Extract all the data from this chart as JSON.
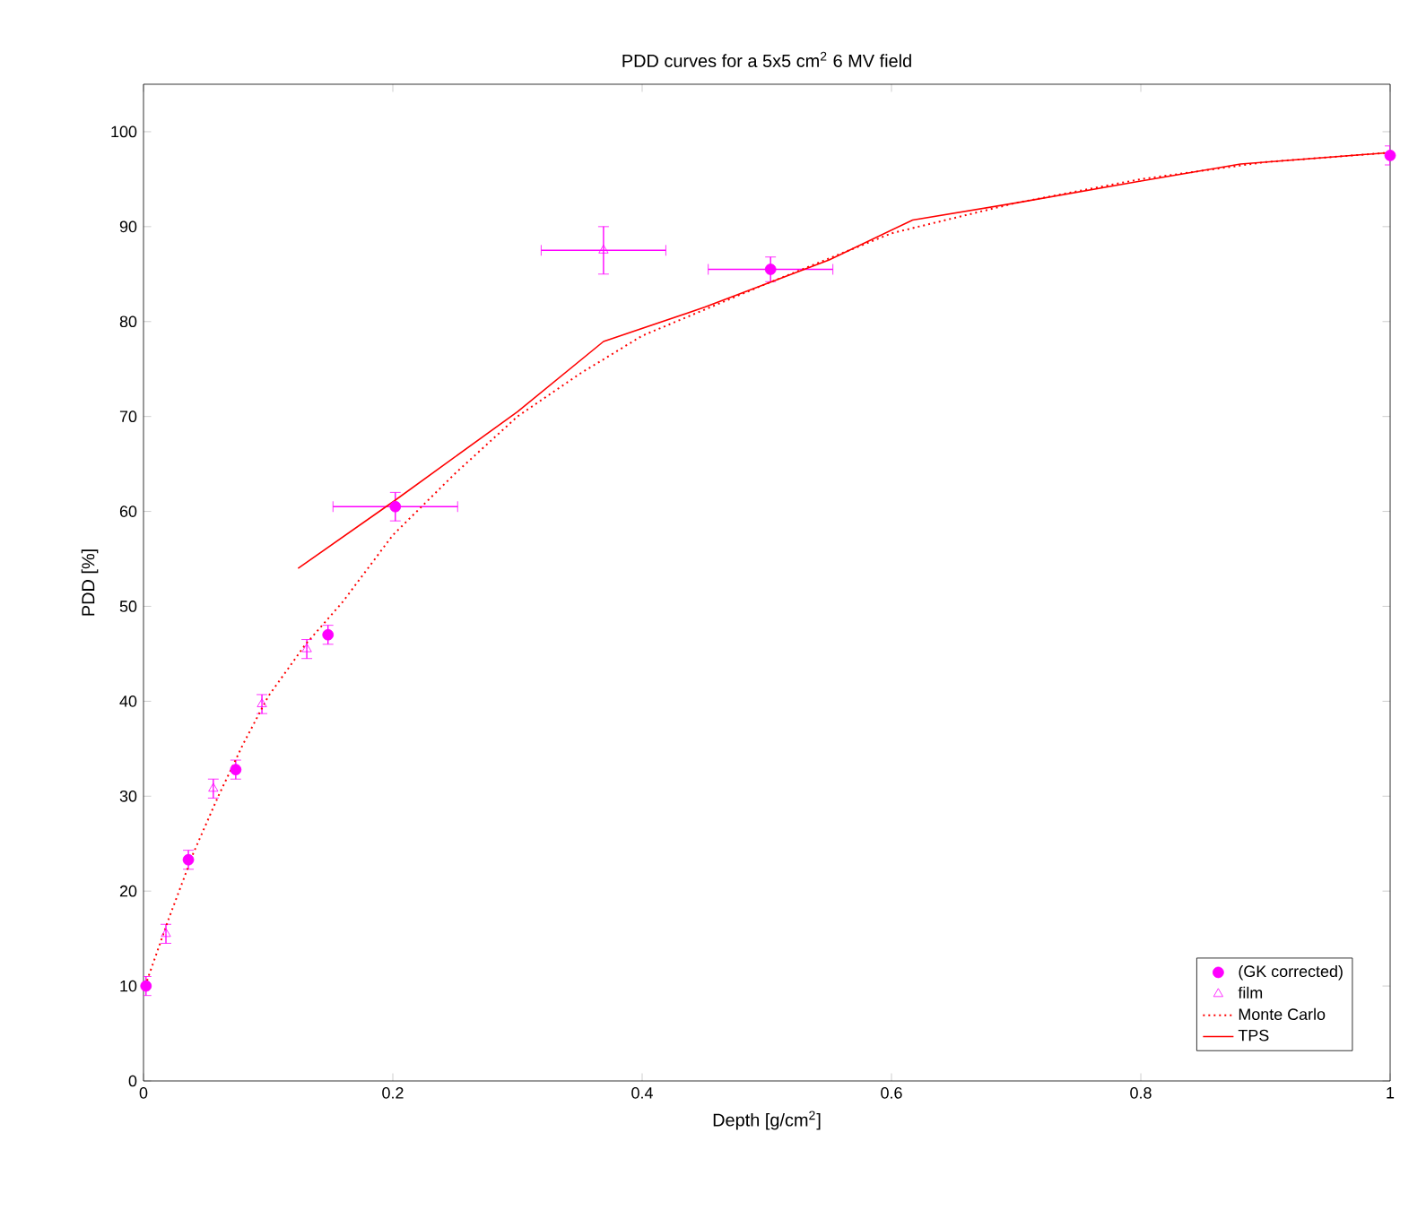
{
  "chart_data": {
    "type": "scatter",
    "title": "PDD curves for a 5x5 cm$^{2}$ 6 MV field",
    "xlabel": "Depth [g/cm$^{2}$]",
    "ylabel": "PDD [%]",
    "xlim": [
      0,
      1
    ],
    "ylim": [
      0,
      105
    ],
    "xticks": [
      0,
      0.2,
      0.4,
      0.6,
      0.8,
      1
    ],
    "yticks": [
      0,
      10,
      20,
      30,
      40,
      50,
      60,
      70,
      80,
      90,
      100
    ],
    "grid": false,
    "legend": "bottom right",
    "series": [
      {
        "name": "(GK corrected)",
        "marker": "circle",
        "color": "#ff00ff",
        "x": [
          0.002,
          0.036,
          0.074,
          0.148,
          0.202,
          0.503,
          1.0
        ],
        "values": [
          10,
          23.3,
          32.8,
          47,
          60.5,
          85.5,
          97.5
        ],
        "errors": [
          1,
          1,
          1,
          1,
          1.5,
          1.3,
          1
        ],
        "xerrors": [
          null,
          null,
          null,
          null,
          0.05,
          0.05,
          null
        ]
      },
      {
        "name": "film",
        "marker": "triangle",
        "color": "#ff00ff",
        "x": [
          0.018,
          0.056,
          0.095,
          0.131,
          0.369
        ],
        "values": [
          15.5,
          30.8,
          39.7,
          45.5,
          87.5
        ],
        "errors": [
          1,
          1,
          1,
          1,
          2.5
        ],
        "xerrors": [
          null,
          null,
          null,
          null,
          0.05
        ]
      },
      {
        "name": "Monte Carlo",
        "type": "line",
        "marker": "none",
        "line_style": "dotted",
        "color": "#ff0000",
        "x": [
          0,
          0.02,
          0.04,
          0.06,
          0.08,
          0.1,
          0.13,
          0.16,
          0.2,
          0.25,
          0.3,
          0.35,
          0.4,
          0.5,
          0.6,
          0.7,
          0.8,
          0.9,
          1.0
        ],
        "values": [
          9.5,
          17,
          24,
          30,
          35.5,
          40.5,
          46,
          50.5,
          57.5,
          64,
          70,
          74.5,
          78.5,
          84,
          89.3,
          92.5,
          95,
          96.8,
          97.8
        ]
      },
      {
        "name": "TPS",
        "type": "line",
        "marker": "none",
        "line_style": "solid",
        "color": "#ff0000",
        "x": [
          0.124,
          0.2,
          0.3,
          0.369,
          0.45,
          0.55,
          0.617,
          0.7,
          0.8,
          0.88,
          1.0
        ],
        "values": [
          54,
          61,
          70.5,
          77.9,
          81.5,
          86.5,
          90.7,
          92.5,
          94.8,
          96.6,
          97.8
        ]
      }
    ]
  }
}
